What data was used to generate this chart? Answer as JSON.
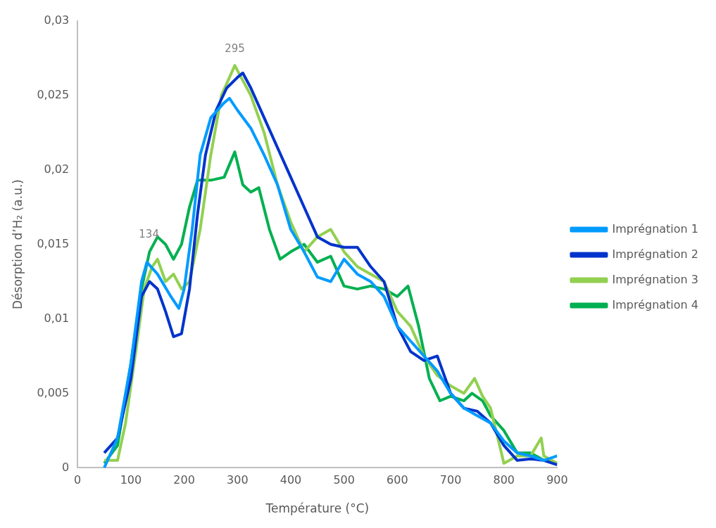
{
  "chart_data": {
    "type": "line",
    "xlabel": "Température (°C)",
    "ylabel": "Désorption d’H₂ (a.u.)",
    "xlim": [
      0,
      900
    ],
    "xticks": [
      0,
      100,
      200,
      300,
      400,
      500,
      600,
      700,
      800,
      900
    ],
    "ylim": [
      0,
      0.03
    ],
    "yticks": [
      {
        "value": 0,
        "label": "0"
      },
      {
        "value": 0.005,
        "label": "0,005"
      },
      {
        "value": 0.01,
        "label": "0,01"
      },
      {
        "value": 0.015,
        "label": "0,015"
      },
      {
        "value": 0.02,
        "label": "0,02"
      },
      {
        "value": 0.025,
        "label": "0,025"
      },
      {
        "value": 0.03,
        "label": "0,03"
      }
    ],
    "grid": false,
    "legend": "right",
    "marker": "none",
    "line_style": "solid",
    "annotations": [
      {
        "text": "134",
        "x": 134,
        "y": 0.0145
      },
      {
        "text": "295",
        "x": 295,
        "y": 0.027
      }
    ],
    "series": [
      {
        "name": "Imprégnation 1",
        "color": "#009bff",
        "x": [
          50,
          75,
          100,
          120,
          130,
          150,
          175,
          190,
          200,
          215,
          230,
          250,
          275,
          285,
          300,
          325,
          350,
          375,
          400,
          425,
          450,
          475,
          500,
          525,
          550,
          575,
          600,
          625,
          650,
          675,
          700,
          725,
          750,
          775,
          800,
          825,
          850,
          875,
          900
        ],
        "values": [
          0,
          0.002,
          0.007,
          0.0125,
          0.0138,
          0.013,
          0.0115,
          0.0107,
          0.012,
          0.016,
          0.021,
          0.0235,
          0.0245,
          0.0248,
          0.024,
          0.0228,
          0.021,
          0.019,
          0.016,
          0.0145,
          0.0128,
          0.0125,
          0.014,
          0.013,
          0.0125,
          0.0115,
          0.0095,
          0.0085,
          0.0075,
          0.0065,
          0.005,
          0.004,
          0.0035,
          0.003,
          0.0018,
          0.001,
          0.0008,
          0.0005,
          0.0008
        ]
      },
      {
        "name": "Imprégnation 2",
        "color": "#0033cc",
        "x": [
          50,
          75,
          100,
          120,
          135,
          150,
          165,
          180,
          195,
          210,
          225,
          240,
          260,
          280,
          300,
          310,
          325,
          350,
          375,
          400,
          425,
          450,
          475,
          500,
          525,
          550,
          575,
          600,
          625,
          650,
          675,
          700,
          725,
          750,
          775,
          800,
          825,
          850,
          875,
          900
        ],
        "values": [
          0.001,
          0.002,
          0.006,
          0.0115,
          0.0125,
          0.012,
          0.0105,
          0.0088,
          0.009,
          0.012,
          0.017,
          0.021,
          0.024,
          0.0255,
          0.0262,
          0.0265,
          0.0255,
          0.0235,
          0.0215,
          0.0195,
          0.0175,
          0.0155,
          0.015,
          0.0148,
          0.0148,
          0.0135,
          0.0125,
          0.0095,
          0.0078,
          0.0072,
          0.0075,
          0.005,
          0.004,
          0.0038,
          0.003,
          0.0015,
          0.0005,
          0.0006,
          0.0005,
          0.0002
        ]
      },
      {
        "name": "Imprégnation 3",
        "color": "#92d050",
        "x": [
          50,
          75,
          90,
          110,
          125,
          140,
          150,
          165,
          180,
          195,
          210,
          230,
          250,
          270,
          285,
          295,
          310,
          325,
          350,
          375,
          400,
          425,
          450,
          475,
          500,
          525,
          550,
          575,
          600,
          625,
          650,
          675,
          700,
          725,
          745,
          760,
          775,
          800,
          825,
          850,
          870,
          875,
          900
        ],
        "values": [
          0.0005,
          0.0005,
          0.003,
          0.008,
          0.012,
          0.0135,
          0.014,
          0.0125,
          0.013,
          0.012,
          0.0125,
          0.016,
          0.021,
          0.025,
          0.0262,
          0.027,
          0.026,
          0.025,
          0.0225,
          0.019,
          0.0165,
          0.0145,
          0.0155,
          0.016,
          0.0145,
          0.0135,
          0.013,
          0.0125,
          0.0105,
          0.0095,
          0.0075,
          0.0062,
          0.0055,
          0.005,
          0.006,
          0.0048,
          0.004,
          0.0003,
          0.0008,
          0.0008,
          0.002,
          0.0008,
          0.0003
        ]
      },
      {
        "name": "Imprégnation 4",
        "color": "#00b050",
        "x": [
          50,
          75,
          100,
          120,
          135,
          150,
          165,
          180,
          195,
          210,
          225,
          250,
          275,
          295,
          310,
          325,
          340,
          360,
          380,
          400,
          425,
          450,
          475,
          500,
          525,
          550,
          575,
          600,
          620,
          640,
          660,
          680,
          700,
          725,
          740,
          760,
          775,
          800,
          825,
          850,
          875,
          900
        ],
        "values": [
          0.0003,
          0.0015,
          0.007,
          0.012,
          0.0145,
          0.0155,
          0.015,
          0.014,
          0.015,
          0.0175,
          0.0193,
          0.0193,
          0.0195,
          0.0212,
          0.019,
          0.0185,
          0.0188,
          0.016,
          0.014,
          0.0145,
          0.015,
          0.0138,
          0.0142,
          0.0122,
          0.012,
          0.0122,
          0.012,
          0.0115,
          0.0122,
          0.0095,
          0.006,
          0.0045,
          0.0048,
          0.0045,
          0.005,
          0.0045,
          0.0035,
          0.0025,
          0.001,
          0.001,
          0.0005,
          0.0003
        ]
      }
    ]
  }
}
